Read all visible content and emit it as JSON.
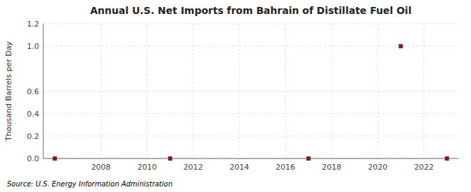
{
  "chart_data": {
    "type": "scatter",
    "title": "Annual U.S. Net Imports from Bahrain of Distillate Fuel Oil",
    "y_label": "Thousand Barrels per Day",
    "annotations": [
      "Source: U.S. Energy Information Administration"
    ],
    "x": [
      2006,
      2011,
      2017,
      2021,
      2023
    ],
    "values": [
      0.0,
      0.0,
      0.0,
      1.0,
      0.0
    ],
    "color": "#8B1A1A",
    "marker": "square",
    "xlim": [
      2005.5,
      2023.5
    ],
    "ylim": [
      0,
      1.2
    ],
    "xticks": [
      2008,
      2010,
      2012,
      2014,
      2016,
      2018,
      2020,
      2022
    ],
    "yticks": [
      {
        "value": 0.0,
        "label": "0.0"
      },
      0.2,
      0.4,
      0.6,
      {
        "value": 1.0,
        "label": "1.0"
      },
      1.2
    ],
    "grid": true
  }
}
